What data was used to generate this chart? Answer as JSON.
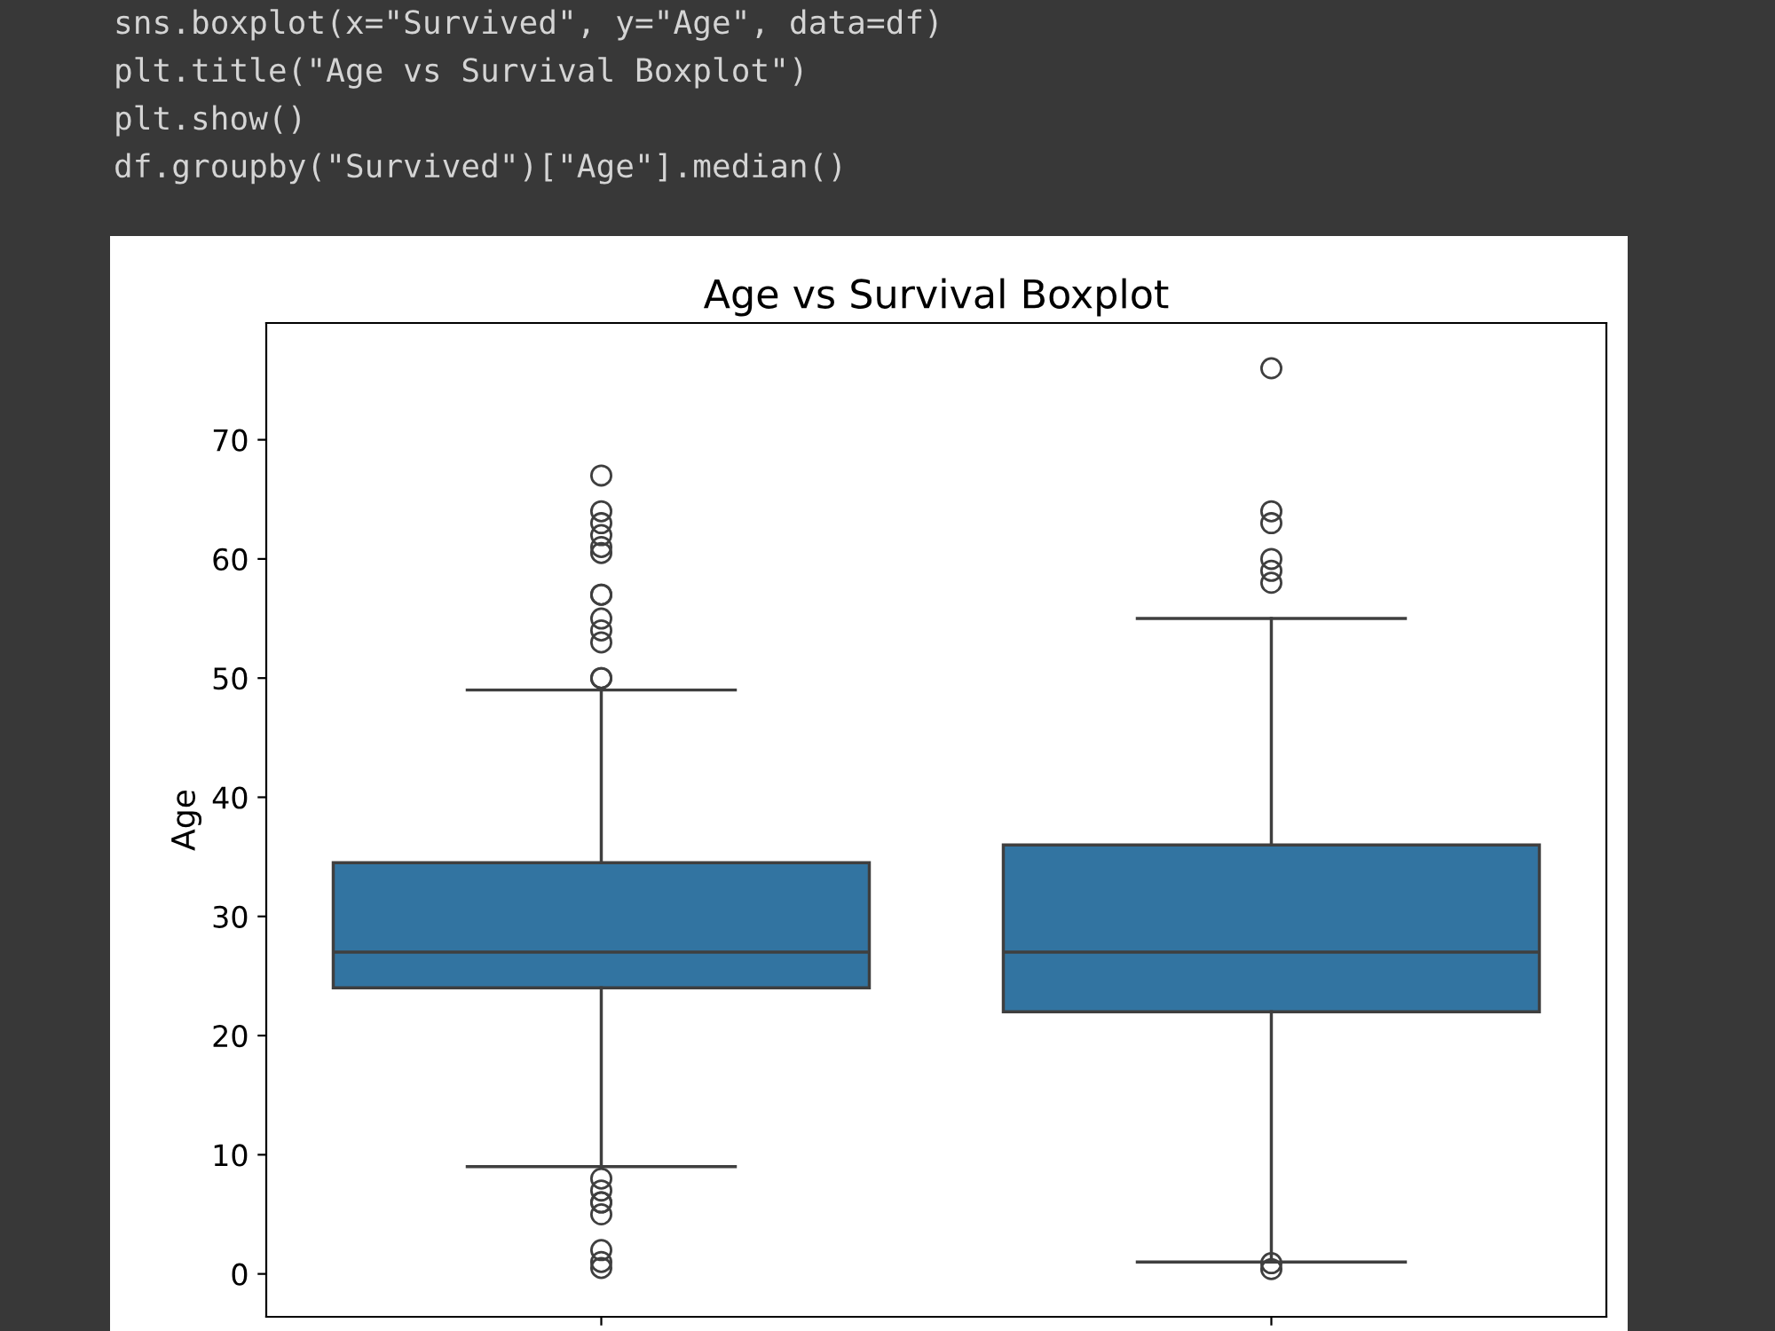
{
  "chart_data": {
    "type": "box",
    "title": "Age vs Survival Boxplot",
    "ylabel": "Age",
    "categories": [
      null,
      null
    ],
    "boxes": [
      {
        "low": 9,
        "q1": 24,
        "median": 27,
        "q3": 34.5,
        "high": 49,
        "outliers": [
          50,
          50,
          53,
          54,
          55,
          57,
          57,
          60.5,
          61,
          62,
          63,
          64,
          67,
          8,
          7,
          6,
          6,
          5,
          2,
          1,
          0.5
        ]
      },
      {
        "low": 1,
        "q1": 22,
        "median": 27,
        "q3": 36,
        "high": 55,
        "outliers": [
          58,
          59,
          60,
          63,
          64,
          76,
          0.9,
          0.4
        ]
      }
    ],
    "color": "#3274a1",
    "ylim": [
      -3.6,
      79.8
    ],
    "yticks": [
      0,
      10,
      20,
      30,
      40,
      50,
      60,
      70
    ],
    "grid": false,
    "annotations": [
      "sns.boxplot(x=\"Survived\", y=\"Age\", data=df)",
      "plt.title(\"Age vs Survival Boxplot\")",
      "plt.show()",
      "df.groupby(\"Survived\")[\"Age\"].median()"
    ]
  }
}
